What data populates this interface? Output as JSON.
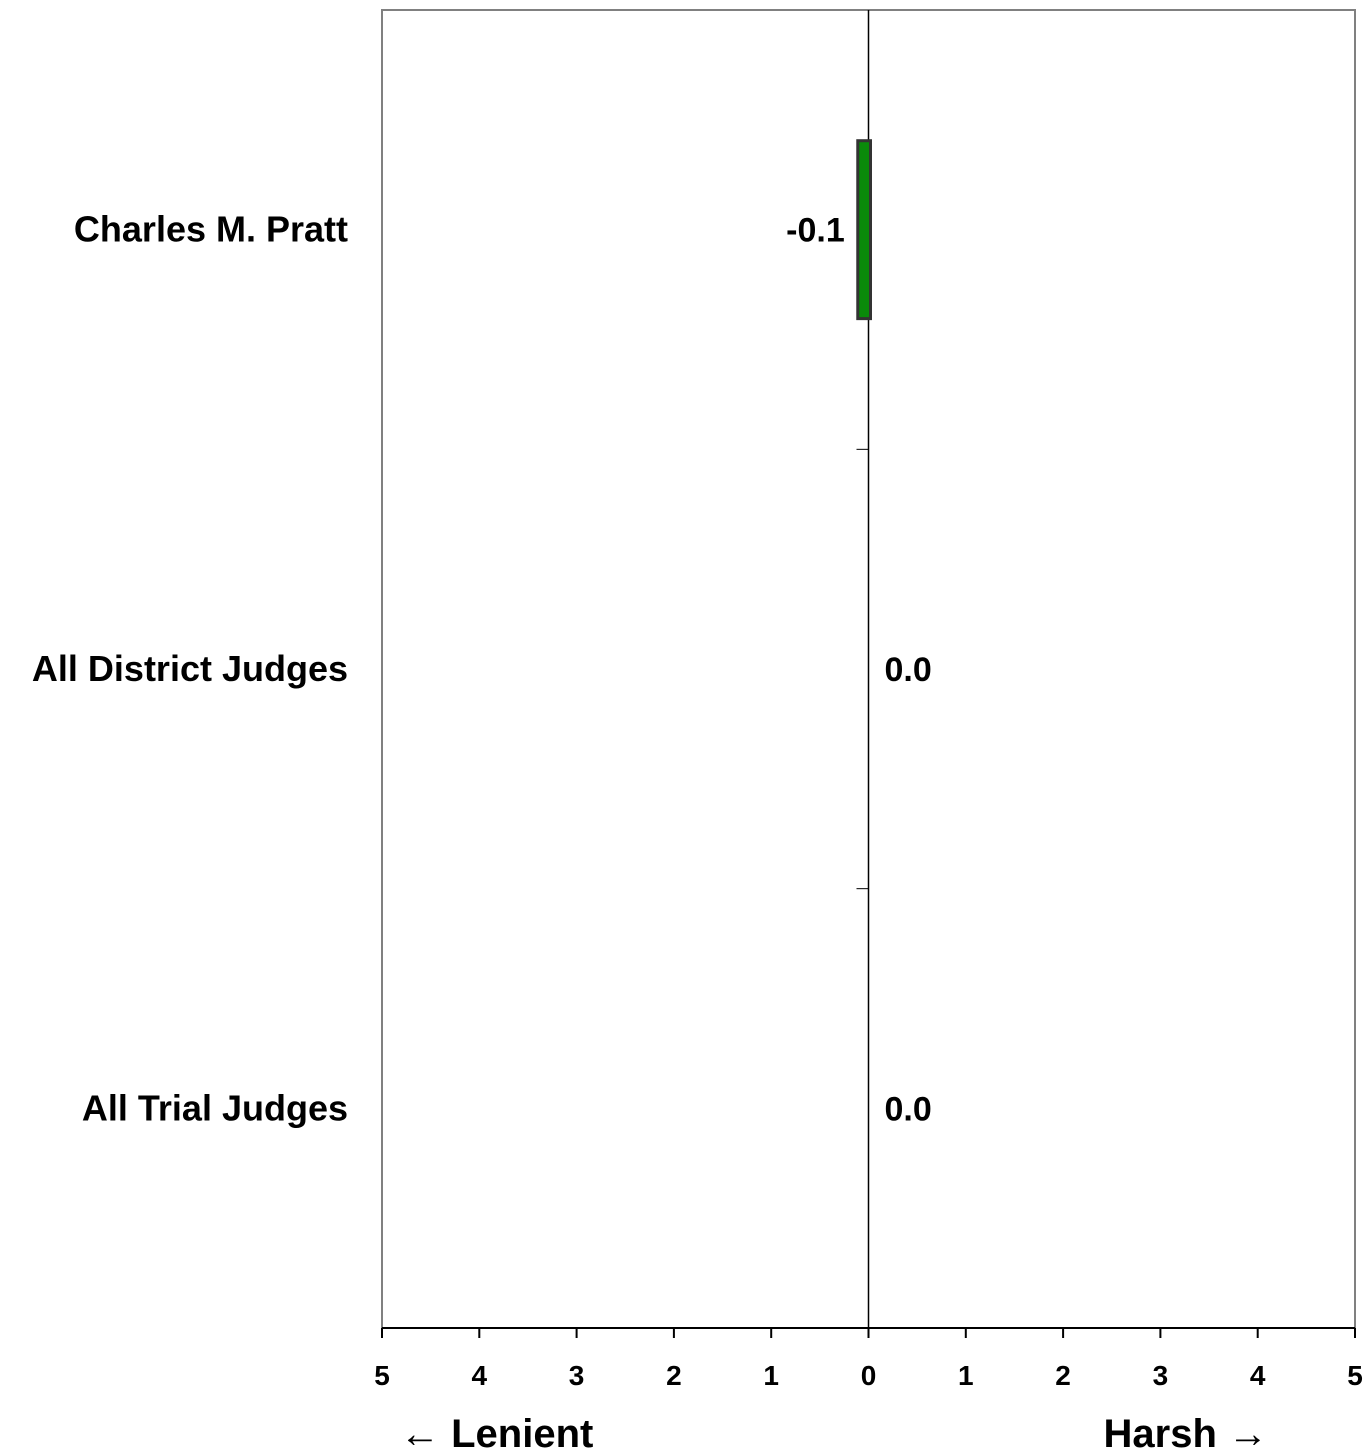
{
  "chart_data": {
    "type": "bar",
    "orientation": "horizontal",
    "categories": [
      "Charles M. Pratt",
      "All District Judges",
      "All Trial Judges"
    ],
    "values": [
      -0.1,
      0.0,
      0.0
    ],
    "value_labels": [
      "-0.1",
      "0.0",
      "0.0"
    ],
    "xlim": [
      -5,
      5
    ],
    "x_tick_labels": [
      "5",
      "4",
      "3",
      "2",
      "1",
      "0",
      "1",
      "2",
      "3",
      "4",
      "5"
    ],
    "x_tick_values": [
      -5,
      -4,
      -3,
      -2,
      -1,
      0,
      1,
      2,
      3,
      4,
      5
    ],
    "left_direction_label": "← Lenient",
    "right_direction_label": "Harsh →",
    "grid": false,
    "bar_color": "#0a8a0a",
    "bar_border_color": "#333333"
  }
}
